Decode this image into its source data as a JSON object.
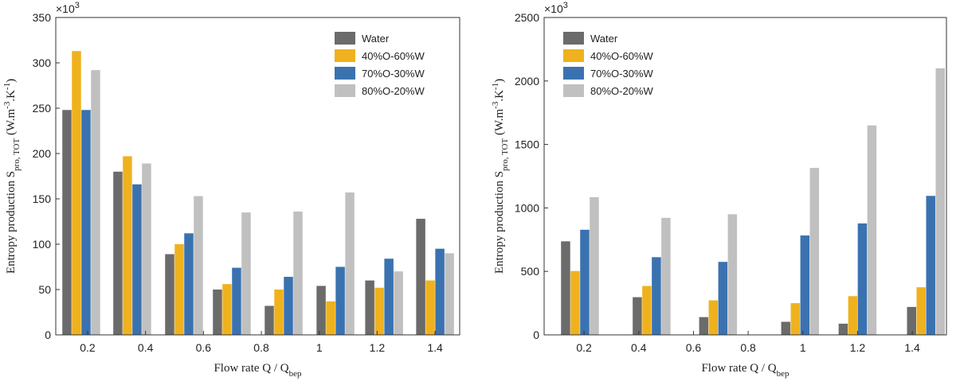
{
  "chart_data": [
    {
      "type": "bar",
      "multiplier": [
        {
          "t": "×10",
          "s": "n"
        },
        {
          "t": "3",
          "s": "sup"
        }
      ],
      "xlabel": [
        {
          "t": "Flow rate Q / Q",
          "s": "n"
        },
        {
          "t": "bep",
          "s": "sub"
        }
      ],
      "ylabel": [
        {
          "t": "Entropy production S",
          "s": "n"
        },
        {
          "t": "pro, TOT",
          "s": "sub"
        },
        {
          "t": " (W.m",
          "s": "n"
        },
        {
          "t": "-3",
          "s": "sup"
        },
        {
          "t": ".K",
          "s": "n"
        },
        {
          "t": "-1",
          "s": "sup"
        },
        {
          "t": ")",
          "s": "n"
        }
      ],
      "x": [
        0.178,
        0.354,
        0.533,
        0.698,
        0.877,
        1.056,
        1.224,
        1.4
      ],
      "xlim": [
        0.09,
        1.485
      ],
      "xticks": [
        0.2,
        0.4,
        0.6,
        0.8,
        1,
        1.2,
        1.4
      ],
      "ylim": [
        0,
        350
      ],
      "yticks": [
        0,
        50,
        100,
        150,
        200,
        250,
        300,
        350
      ],
      "legend": "upper right",
      "series": [
        {
          "name": "Water",
          "color": "#6b6b6b",
          "values": [
            248,
            180,
            89,
            50,
            32,
            54,
            60,
            128
          ]
        },
        {
          "name": "40%O-60%W",
          "color": "#efb21e",
          "values": [
            313,
            197,
            100,
            56,
            50,
            37,
            52,
            60
          ]
        },
        {
          "name": "70%O-30%W",
          "color": "#3a72b0",
          "values": [
            248,
            166,
            112,
            74,
            64,
            75,
            84,
            95
          ]
        },
        {
          "name": "80%O-20%W",
          "color": "#c0c0c0",
          "values": [
            292,
            189,
            153,
            135,
            136,
            157,
            70,
            90
          ]
        }
      ]
    },
    {
      "type": "bar",
      "multiplier": [
        {
          "t": "×10",
          "s": "n"
        },
        {
          "t": "3",
          "s": "sup"
        }
      ],
      "xlabel": [
        {
          "t": "Flow rate Q / Q",
          "s": "n"
        },
        {
          "t": "bep",
          "s": "sub"
        }
      ],
      "ylabel": [
        {
          "t": "Entropy production S",
          "s": "n"
        },
        {
          "t": "pro, TOT",
          "s": "sub"
        },
        {
          "t": " (W.m",
          "s": "n"
        },
        {
          "t": "-3",
          "s": "sup"
        },
        {
          "t": ".K",
          "s": "n"
        },
        {
          "t": "-1",
          "s": "sup"
        },
        {
          "t": ")",
          "s": "n"
        }
      ],
      "x": [
        0.185,
        0.447,
        0.69,
        0.99,
        1.2,
        1.45
      ],
      "xlim": [
        0.054,
        1.525
      ],
      "xticks": [
        0.2,
        0.4,
        0.6,
        0.8,
        1,
        1.2,
        1.4
      ],
      "ylim": [
        0,
        2500
      ],
      "yticks": [
        0,
        500,
        1000,
        1500,
        2000,
        2500
      ],
      "legend": "upper left",
      "series": [
        {
          "name": "Water",
          "color": "#6b6b6b",
          "values": [
            737,
            297,
            140,
            103,
            88,
            220
          ]
        },
        {
          "name": "40%O-60%W",
          "color": "#efb21e",
          "values": [
            503,
            385,
            272,
            250,
            305,
            375
          ]
        },
        {
          "name": "70%O-30%W",
          "color": "#3a72b0",
          "values": [
            828,
            612,
            575,
            783,
            878,
            1095
          ]
        },
        {
          "name": "80%O-20%W",
          "color": "#c0c0c0",
          "values": [
            1085,
            922,
            950,
            1315,
            1650,
            2100
          ]
        }
      ]
    }
  ]
}
